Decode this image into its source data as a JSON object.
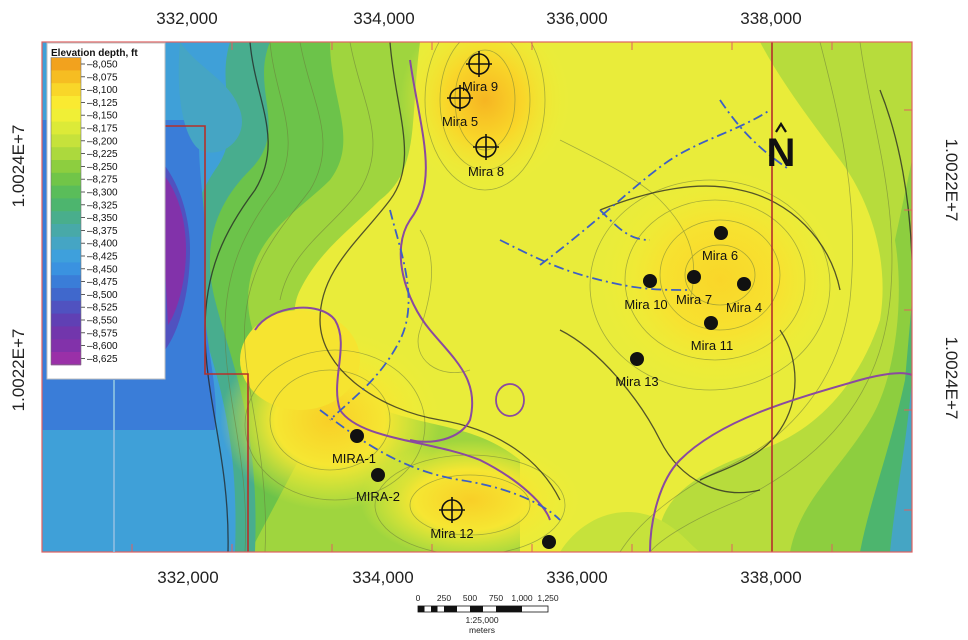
{
  "axes": {
    "x_ticks_top": [
      "332,000",
      "334,000",
      "336,000",
      "338,000"
    ],
    "x_ticks_bottom": [
      "332,000",
      "334,000",
      "336,000",
      "338,000"
    ],
    "y_ticks_left": [
      "1.0024E+7",
      "1.0022E+7"
    ],
    "y_ticks_right": [
      "1.0022E+7",
      "1.0024E+7"
    ]
  },
  "legend": {
    "title": "Elevation depth, ft",
    "items": [
      "–8,050",
      "–8,075",
      "–8,100",
      "–8,125",
      "–8,150",
      "–8,175",
      "–8,200",
      "–8,225",
      "–8,250",
      "–8,275",
      "–8,300",
      "–8,325",
      "–8,350",
      "–8,375",
      "–8,400",
      "–8,425",
      "–8,450",
      "–8,475",
      "–8,500",
      "–8,525",
      "–8,550",
      "–8,575",
      "–8,600",
      "–8,625"
    ],
    "colors": [
      "#f2a21e",
      "#f6bd22",
      "#f9d629",
      "#faea31",
      "#f0ef36",
      "#dcea38",
      "#c6e23b",
      "#acd93d",
      "#8dce3f",
      "#71c548",
      "#5abd5a",
      "#4db56e",
      "#49ae8c",
      "#48a9a8",
      "#45a5c4",
      "#3ea0dc",
      "#3a92e0",
      "#3a7dd8",
      "#4068cc",
      "#5052c0",
      "#6040b4",
      "#7236ac",
      "#8232aa",
      "#9a30a8"
    ]
  },
  "north_arrow": "N",
  "wells": [
    {
      "label": "Mira 9",
      "type": "planned"
    },
    {
      "label": "Mira 5",
      "type": "planned"
    },
    {
      "label": "Mira 8",
      "type": "planned"
    },
    {
      "label": "Mira 6",
      "type": "drilled"
    },
    {
      "label": "Mira 10",
      "type": "drilled"
    },
    {
      "label": "Mira 7",
      "type": "drilled"
    },
    {
      "label": "Mira 4",
      "type": "drilled"
    },
    {
      "label": "Mira 11",
      "type": "drilled"
    },
    {
      "label": "Mira 13",
      "type": "drilled"
    },
    {
      "label": "MIRA-1",
      "type": "drilled"
    },
    {
      "label": "MIRA-2",
      "type": "drilled"
    },
    {
      "label": "Mira 12",
      "type": "planned"
    },
    {
      "label": "",
      "type": "drilled"
    }
  ],
  "scale_bar": {
    "ticks": [
      "0",
      "250",
      "500",
      "750",
      "1,000",
      "1,250"
    ],
    "ratio": "1:25,000",
    "units": "meters"
  },
  "colors": {
    "frame": "#e06060",
    "lease_boundary": "#b5302a",
    "fault_line": "#3d5fc4",
    "closure_contour": "#8a4aa0"
  }
}
